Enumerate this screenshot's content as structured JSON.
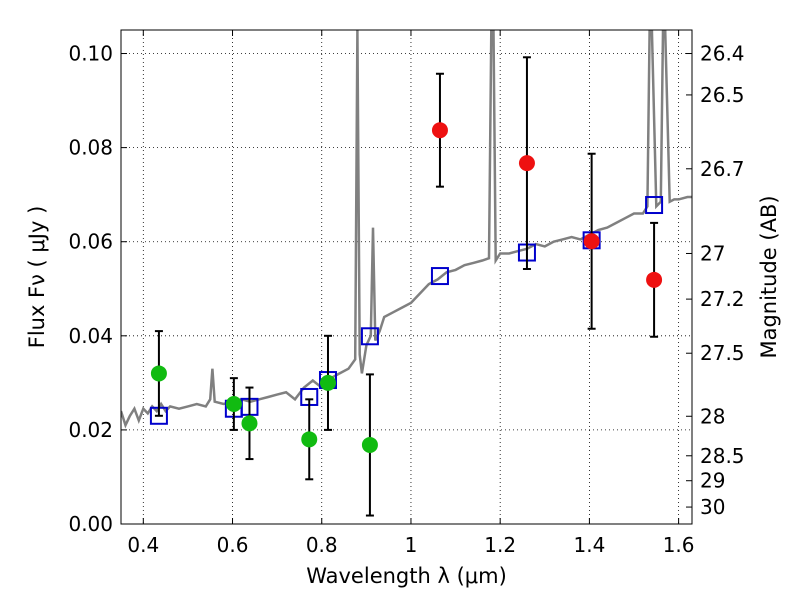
{
  "chart_data": {
    "type": "scatter",
    "xlabel": "Wavelength  λ (μm)",
    "ylabel": "Flux  Fν  ( μJy )",
    "ylabel_right": "Magnitude (AB)",
    "xlim": [
      0.35,
      1.63
    ],
    "ylim": [
      0.0,
      0.105
    ],
    "grid": true,
    "x_ticks": [
      0.4,
      0.6,
      0.8,
      1.0,
      1.2,
      1.4,
      1.6
    ],
    "x_tick_labels": [
      "0.4",
      "0.6",
      "0.8",
      "1",
      "1.2",
      "1.4",
      "1.6"
    ],
    "y_ticks": [
      0.0,
      0.02,
      0.04,
      0.06,
      0.08,
      0.1
    ],
    "y_tick_labels": [
      "0.00",
      "0.02",
      "0.04",
      "0.06",
      "0.08",
      "0.10"
    ],
    "right_ticks": [
      {
        "flux": 0.1,
        "label": "26.4"
      },
      {
        "flux": 0.0912,
        "label": "26.5"
      },
      {
        "flux": 0.0755,
        "label": "26.7"
      },
      {
        "flux": 0.0575,
        "label": "27"
      },
      {
        "flux": 0.0478,
        "label": "27.2"
      },
      {
        "flux": 0.0363,
        "label": "27.5"
      },
      {
        "flux": 0.0229,
        "label": "28"
      },
      {
        "flux": 0.0145,
        "label": "28.5"
      },
      {
        "flux": 0.0092,
        "label": "29"
      },
      {
        "flux": 0.0036,
        "label": "30"
      }
    ],
    "colors": {
      "sed": "#808080",
      "model": "#0000cc",
      "detections": "#11bb11",
      "nondetections": "#ee1111",
      "errorbar": "#000000"
    },
    "series": [
      {
        "marker": "open-square",
        "color": "#0000cc",
        "points": [
          {
            "x": 0.435,
            "y": 0.023
          },
          {
            "x": 0.603,
            "y": 0.0245
          },
          {
            "x": 0.638,
            "y": 0.0249
          },
          {
            "x": 0.772,
            "y": 0.027
          },
          {
            "x": 0.814,
            "y": 0.0306
          },
          {
            "x": 0.908,
            "y": 0.0399
          },
          {
            "x": 1.065,
            "y": 0.0527
          },
          {
            "x": 1.26,
            "y": 0.0577
          },
          {
            "x": 1.405,
            "y": 0.0603
          },
          {
            "x": 1.545,
            "y": 0.0678
          }
        ]
      },
      {
        "marker": "filled-circle",
        "color": "#11bb11",
        "points": [
          {
            "x": 0.435,
            "y": 0.032,
            "err_low": 0.009,
            "err_high": 0.009
          },
          {
            "x": 0.603,
            "y": 0.0255,
            "err_low": 0.0055,
            "err_high": 0.0055
          },
          {
            "x": 0.638,
            "y": 0.0214,
            "err_low": 0.0076,
            "err_high": 0.0076
          },
          {
            "x": 0.772,
            "y": 0.018,
            "err_low": 0.0085,
            "err_high": 0.0085
          },
          {
            "x": 0.814,
            "y": 0.03,
            "err_low": 0.01,
            "err_high": 0.01
          },
          {
            "x": 0.908,
            "y": 0.0168,
            "err_low": 0.015,
            "err_high": 0.015
          }
        ]
      },
      {
        "marker": "filled-circle",
        "color": "#ee1111",
        "points": [
          {
            "x": 1.065,
            "y": 0.0837,
            "err_low": 0.012,
            "err_high": 0.012
          },
          {
            "x": 1.26,
            "y": 0.0767,
            "err_low": 0.0225,
            "err_high": 0.0225
          },
          {
            "x": 1.405,
            "y": 0.0601,
            "err_low": 0.0186,
            "err_high": 0.0186
          },
          {
            "x": 1.545,
            "y": 0.0519,
            "err_low": 0.0121,
            "err_high": 0.0121
          }
        ]
      }
    ],
    "sed_line": {
      "x": [
        0.35,
        0.36,
        0.37,
        0.38,
        0.39,
        0.4,
        0.41,
        0.42,
        0.43,
        0.44,
        0.45,
        0.46,
        0.48,
        0.5,
        0.52,
        0.54,
        0.55,
        0.555,
        0.56,
        0.58,
        0.6,
        0.62,
        0.64,
        0.66,
        0.68,
        0.7,
        0.72,
        0.74,
        0.76,
        0.78,
        0.8,
        0.82,
        0.84,
        0.86,
        0.875,
        0.88,
        0.885,
        0.89,
        0.9,
        0.91,
        0.915,
        0.92,
        0.93,
        0.94,
        0.96,
        0.98,
        1.0,
        1.02,
        1.04,
        1.06,
        1.08,
        1.1,
        1.12,
        1.14,
        1.16,
        1.175,
        1.18,
        1.185,
        1.19,
        1.2,
        1.22,
        1.24,
        1.26,
        1.28,
        1.3,
        1.32,
        1.34,
        1.36,
        1.38,
        1.4,
        1.42,
        1.44,
        1.46,
        1.48,
        1.5,
        1.52,
        1.53,
        1.535,
        1.54,
        1.55,
        1.56,
        1.565,
        1.57,
        1.58,
        1.59,
        1.6,
        1.62,
        1.63
      ],
      "y": [
        0.024,
        0.021,
        0.023,
        0.0245,
        0.022,
        0.0245,
        0.0235,
        0.025,
        0.024,
        0.0255,
        0.024,
        0.025,
        0.0245,
        0.025,
        0.0255,
        0.025,
        0.0265,
        0.033,
        0.026,
        0.0255,
        0.026,
        0.0265,
        0.026,
        0.0265,
        0.027,
        0.0275,
        0.028,
        0.0265,
        0.029,
        0.0305,
        0.029,
        0.031,
        0.032,
        0.033,
        0.035,
        0.105,
        0.036,
        0.032,
        0.038,
        0.04,
        0.063,
        0.039,
        0.041,
        0.044,
        0.045,
        0.046,
        0.047,
        0.049,
        0.051,
        0.052,
        0.0535,
        0.054,
        0.055,
        0.0555,
        0.056,
        0.0565,
        0.105,
        0.105,
        0.056,
        0.0575,
        0.0575,
        0.058,
        0.0585,
        0.0595,
        0.059,
        0.06,
        0.0605,
        0.061,
        0.0605,
        0.0615,
        0.0625,
        0.063,
        0.064,
        0.065,
        0.066,
        0.066,
        0.0675,
        0.105,
        0.105,
        0.0675,
        0.0685,
        0.105,
        0.105,
        0.0685,
        0.069,
        0.069,
        0.0695,
        0.0695
      ]
    }
  }
}
